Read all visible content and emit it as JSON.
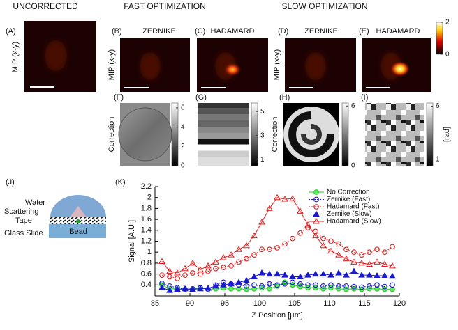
{
  "headers": {
    "uncorrected": "UNCORRECTED",
    "fast": "FAST OPTIMIZATION",
    "slow": "SLOW OPTIMIZATION"
  },
  "mip_axis_label": "MIP (x-y)",
  "mip_panels": [
    {
      "label": "(A)"
    },
    {
      "label": "(B)",
      "title": "ZERNIKE"
    },
    {
      "label": "(C)",
      "title": "HADAMARD"
    },
    {
      "label": "(D)",
      "title": "ZERNIKE"
    },
    {
      "label": "(E)",
      "title": "HADAMARD"
    }
  ],
  "mip_colorbar": {
    "clim": [
      0,
      2
    ],
    "ticks": [
      0,
      2
    ]
  },
  "correction_label": "Correction",
  "rad_label": "[rad]",
  "correction_panels": [
    {
      "label": "(F)",
      "clim": [
        0,
        6.5
      ],
      "ticks": [
        0,
        2,
        4,
        6
      ]
    },
    {
      "label": "(G)",
      "clim": [
        0.5,
        5.7
      ],
      "ticks": [
        1,
        3,
        5
      ]
    },
    {
      "label": "(H)",
      "clim": [
        0,
        6.3
      ],
      "ticks": [
        0,
        6
      ]
    },
    {
      "label": "(I)",
      "clim": [
        0.4,
        6.3
      ],
      "ticks": [
        1,
        6
      ]
    }
  ],
  "diagram": {
    "label": "(J)",
    "water": "Water",
    "scattering": "Scattering",
    "tape": "Tape",
    "glass": "Glass Slide",
    "bead": "Bead"
  },
  "chart_label": "(K)",
  "chart_data": {
    "type": "line",
    "xlabel": "Z Position [μm]",
    "ylabel": "Signal  [A.U.]",
    "xlim": [
      85,
      120
    ],
    "ylim": [
      0.2,
      2.2
    ],
    "xticks": [
      85,
      90,
      95,
      100,
      105,
      110,
      115,
      120
    ],
    "yticks": [
      0.4,
      0.6,
      0.8,
      1,
      1.2,
      1.4,
      1.6,
      1.8,
      2,
      2.2
    ],
    "legend": "upper right",
    "x": [
      86,
      87.1,
      88.2,
      89.3,
      90.4,
      91.5,
      92.6,
      93.7,
      94.8,
      95.9,
      97,
      98.1,
      99.2,
      100.3,
      101.4,
      102.5,
      103.6,
      104.7,
      105.8,
      106.9,
      108,
      109.1,
      110.2,
      111.3,
      112.4,
      113.5,
      114.6,
      115.7,
      116.8,
      117.9,
      119
    ],
    "series": [
      {
        "name": "No Correction",
        "color": "#22cc22",
        "marker": "circle",
        "marker_fill": true,
        "line_style": "solid",
        "values": [
          0.4,
          0.33,
          0.33,
          0.32,
          0.32,
          0.35,
          0.32,
          0.33,
          0.35,
          0.33,
          0.33,
          0.32,
          0.33,
          0.35,
          0.33,
          0.38,
          0.45,
          0.4,
          0.37,
          0.35,
          0.35,
          0.33,
          0.35,
          0.33,
          0.32,
          0.33,
          0.32,
          0.33,
          0.33,
          0.32,
          0.32
        ]
      },
      {
        "name": "Zernike (Fast)",
        "color": "#1a1acc",
        "marker": "circle",
        "marker_fill": false,
        "line_style": "dotted",
        "values": [
          0.43,
          0.38,
          0.35,
          0.32,
          0.33,
          0.35,
          0.32,
          0.4,
          0.45,
          0.42,
          0.4,
          0.38,
          0.4,
          0.38,
          0.42,
          0.4,
          0.42,
          0.45,
          0.42,
          0.4,
          0.4,
          0.38,
          0.4,
          0.38,
          0.38,
          0.37,
          0.36,
          0.38,
          0.4,
          0.37,
          0.4
        ]
      },
      {
        "name": "Hadamard (Fast)",
        "color": "#e02020",
        "marker": "circle",
        "marker_fill": false,
        "line_style": "dotted",
        "values": [
          0.58,
          0.55,
          0.52,
          0.58,
          0.62,
          0.6,
          0.65,
          0.7,
          0.72,
          0.75,
          0.82,
          0.88,
          0.95,
          1.05,
          1.05,
          1.08,
          1.15,
          1.25,
          1.35,
          1.45,
          1.38,
          1.25,
          1.2,
          1.15,
          1.05,
          1,
          0.95,
          1,
          1.05,
          1,
          1.1
        ]
      },
      {
        "name": "Zernike (Slow)",
        "color": "#1a1acc",
        "marker": "triangle",
        "marker_fill": true,
        "line_style": "solid",
        "values": [
          0.35,
          0.3,
          0.32,
          0.33,
          0.32,
          0.33,
          0.34,
          0.38,
          0.4,
          0.42,
          0.45,
          0.48,
          0.55,
          0.62,
          0.6,
          0.6,
          0.58,
          0.55,
          0.55,
          0.58,
          0.6,
          0.6,
          0.58,
          0.62,
          0.58,
          0.65,
          0.58,
          0.58,
          0.57,
          0.57,
          0.56
        ]
      },
      {
        "name": "Hadamard (Slow)",
        "color": "#e02020",
        "marker": "triangle",
        "marker_fill": false,
        "line_style": "solid",
        "values": [
          0.83,
          0.65,
          0.62,
          0.7,
          0.8,
          0.68,
          0.75,
          0.82,
          0.9,
          0.95,
          1.05,
          1.12,
          1.3,
          1.55,
          1.8,
          2,
          1.97,
          1.98,
          1.75,
          1.5,
          1.3,
          1.12,
          1.02,
          0.95,
          0.88,
          0.82,
          0.8,
          0.78,
          0.82,
          0.78,
          0.75
        ]
      }
    ]
  }
}
